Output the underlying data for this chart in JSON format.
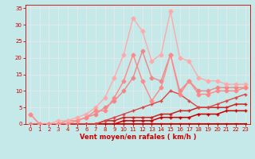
{
  "xlabel": "Vent moyen/en rafales ( km/h )",
  "ylabel": "",
  "xlim": [
    -0.5,
    23.5
  ],
  "ylim": [
    0,
    36
  ],
  "yticks": [
    0,
    5,
    10,
    15,
    20,
    25,
    30,
    35
  ],
  "xticks": [
    0,
    1,
    2,
    3,
    4,
    5,
    6,
    7,
    8,
    9,
    10,
    11,
    12,
    13,
    14,
    15,
    16,
    17,
    18,
    19,
    20,
    21,
    22,
    23
  ],
  "bg_color": "#c5e8e8",
  "grid_color": "#e8e8e8",
  "lines": [
    {
      "x": [
        0,
        1,
        2,
        3,
        4,
        5,
        6,
        7,
        8,
        9,
        10,
        11,
        12,
        13,
        14,
        15,
        16,
        17,
        18,
        19,
        20,
        21,
        22,
        23
      ],
      "y": [
        0,
        0,
        0,
        0,
        0,
        0,
        0,
        0,
        0,
        0,
        0,
        0,
        0,
        0,
        0,
        0,
        0,
        0,
        0,
        0,
        0,
        0,
        0,
        0
      ],
      "color": "#cc0000",
      "lw": 2.2,
      "marker": "s",
      "ms": 2.0
    },
    {
      "x": [
        0,
        1,
        2,
        3,
        4,
        5,
        6,
        7,
        8,
        9,
        10,
        11,
        12,
        13,
        14,
        15,
        16,
        17,
        18,
        19,
        20,
        21,
        22,
        23
      ],
      "y": [
        0,
        0,
        0,
        0,
        0,
        0,
        0,
        0,
        0,
        0,
        1,
        1,
        1,
        1,
        2,
        2,
        2,
        2,
        3,
        3,
        3,
        4,
        4,
        4
      ],
      "color": "#cc0000",
      "lw": 1.1,
      "marker": "+",
      "ms": 3.5
    },
    {
      "x": [
        0,
        1,
        2,
        3,
        4,
        5,
        6,
        7,
        8,
        9,
        10,
        11,
        12,
        13,
        14,
        15,
        16,
        17,
        18,
        19,
        20,
        21,
        22,
        23
      ],
      "y": [
        0,
        0,
        0,
        0,
        0,
        0,
        0,
        0,
        1,
        1,
        2,
        2,
        2,
        2,
        3,
        3,
        4,
        4,
        5,
        5,
        5,
        5,
        6,
        6
      ],
      "color": "#cc2222",
      "lw": 1.1,
      "marker": "+",
      "ms": 3.5
    },
    {
      "x": [
        0,
        1,
        2,
        3,
        4,
        5,
        6,
        7,
        8,
        9,
        10,
        11,
        12,
        13,
        14,
        15,
        16,
        17,
        18,
        19,
        20,
        21,
        22,
        23
      ],
      "y": [
        0,
        0,
        0,
        0,
        0,
        0,
        0,
        0,
        1,
        2,
        3,
        4,
        5,
        6,
        7,
        10,
        9,
        7,
        5,
        5,
        6,
        7,
        8,
        9
      ],
      "color": "#dd4444",
      "lw": 1.0,
      "marker": "+",
      "ms": 3.0
    },
    {
      "x": [
        0,
        1,
        2,
        3,
        4,
        5,
        6,
        7,
        8,
        9,
        10,
        11,
        12,
        13,
        14,
        15,
        16,
        17,
        18,
        19,
        20,
        21,
        22,
        23
      ],
      "y": [
        0,
        0,
        0,
        0,
        1,
        1,
        2,
        3,
        5,
        7,
        10,
        14,
        22,
        14,
        13,
        21,
        10,
        13,
        10,
        10,
        11,
        11,
        11,
        11
      ],
      "color": "#ee8888",
      "lw": 1.0,
      "marker": "D",
      "ms": 2.5
    },
    {
      "x": [
        0,
        1,
        2,
        3,
        4,
        5,
        6,
        7,
        8,
        9,
        10,
        11,
        12,
        13,
        14,
        15,
        16,
        17,
        18,
        19,
        20,
        21,
        22,
        23
      ],
      "y": [
        3,
        0,
        0,
        1,
        1,
        2,
        3,
        5,
        8,
        14,
        21,
        32,
        28,
        19,
        21,
        34,
        20,
        19,
        14,
        13,
        13,
        12,
        12,
        12
      ],
      "color": "#ffaaaa",
      "lw": 1.0,
      "marker": "D",
      "ms": 2.5
    },
    {
      "x": [
        0,
        1,
        2,
        3,
        4,
        5,
        6,
        7,
        8,
        9,
        10,
        11,
        12,
        13,
        14,
        15,
        16,
        17,
        18,
        19,
        20,
        21,
        22,
        23
      ],
      "y": [
        3,
        0,
        0,
        0,
        0,
        1,
        2,
        4,
        4,
        8,
        13,
        21,
        13,
        7,
        11,
        21,
        9,
        13,
        9,
        9,
        10,
        10,
        10,
        11
      ],
      "color": "#ff8888",
      "lw": 1.0,
      "marker": "D",
      "ms": 2.5
    }
  ],
  "tick_color": "#cc0000",
  "label_color": "#cc0000"
}
